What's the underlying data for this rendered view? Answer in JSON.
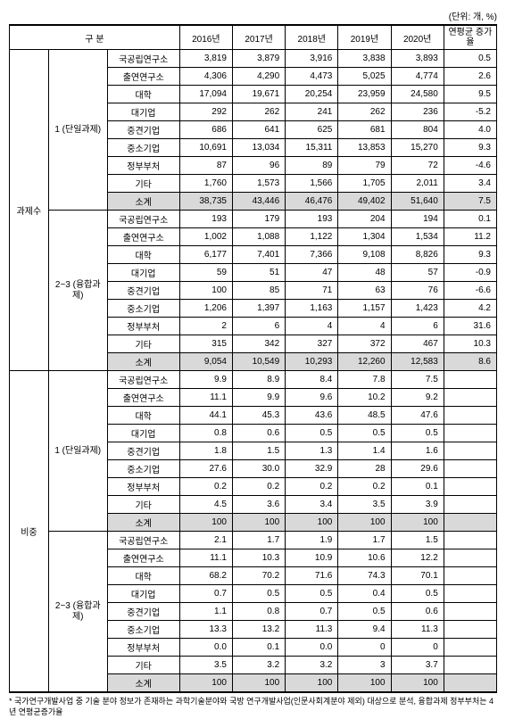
{
  "unit_label": "(단위: 개, %)",
  "header": {
    "cat": "구 분",
    "y2016": "2016년",
    "y2017": "2017년",
    "y2018": "2018년",
    "y2019": "2019년",
    "y2020": "2020년",
    "rate": "연평균\n증가율"
  },
  "group1": {
    "label": "과제수"
  },
  "group2": {
    "label": "비중"
  },
  "sub1": {
    "label": "1\n(단일과제)"
  },
  "sub2": {
    "label": "2~3\n(융합과제)"
  },
  "rowlabels": {
    "r1": "국공립연구소",
    "r2": "출연연구소",
    "r3": "대학",
    "r4": "대기업",
    "r5": "중견기업",
    "r6": "중소기업",
    "r7": "정부부처",
    "r8": "기타",
    "r9": "소계"
  },
  "sections": [
    {
      "rows": [
        [
          "3,819",
          "3,879",
          "3,916",
          "3,838",
          "3,893",
          "0.5"
        ],
        [
          "4,306",
          "4,290",
          "4,473",
          "5,025",
          "4,774",
          "2.6"
        ],
        [
          "17,094",
          "19,671",
          "20,254",
          "23,959",
          "24,580",
          "9.5"
        ],
        [
          "292",
          "262",
          "241",
          "262",
          "236",
          "-5.2"
        ],
        [
          "686",
          "641",
          "625",
          "681",
          "804",
          "4.0"
        ],
        [
          "10,691",
          "13,034",
          "15,311",
          "13,853",
          "15,270",
          "9.3"
        ],
        [
          "87",
          "96",
          "89",
          "79",
          "72",
          "-4.6"
        ],
        [
          "1,760",
          "1,573",
          "1,566",
          "1,705",
          "2,011",
          "3.4"
        ],
        [
          "38,735",
          "43,446",
          "46,476",
          "49,402",
          "51,640",
          "7.5"
        ]
      ]
    },
    {
      "rows": [
        [
          "193",
          "179",
          "193",
          "204",
          "194",
          "0.1"
        ],
        [
          "1,002",
          "1,088",
          "1,122",
          "1,304",
          "1,534",
          "11.2"
        ],
        [
          "6,177",
          "7,401",
          "7,366",
          "9,108",
          "8,826",
          "9.3"
        ],
        [
          "59",
          "51",
          "47",
          "48",
          "57",
          "-0.9"
        ],
        [
          "100",
          "85",
          "71",
          "63",
          "76",
          "-6.6"
        ],
        [
          "1,206",
          "1,397",
          "1,163",
          "1,157",
          "1,423",
          "4.2"
        ],
        [
          "2",
          "6",
          "4",
          "4",
          "6",
          "31.6"
        ],
        [
          "315",
          "342",
          "327",
          "372",
          "467",
          "10.3"
        ],
        [
          "9,054",
          "10,549",
          "10,293",
          "12,260",
          "12,583",
          "8.6"
        ]
      ]
    },
    {
      "rows": [
        [
          "9.9",
          "8.9",
          "8.4",
          "7.8",
          "7.5",
          ""
        ],
        [
          "11.1",
          "9.9",
          "9.6",
          "10.2",
          "9.2",
          ""
        ],
        [
          "44.1",
          "45.3",
          "43.6",
          "48.5",
          "47.6",
          ""
        ],
        [
          "0.8",
          "0.6",
          "0.5",
          "0.5",
          "0.5",
          ""
        ],
        [
          "1.8",
          "1.5",
          "1.3",
          "1.4",
          "1.6",
          ""
        ],
        [
          "27.6",
          "30.0",
          "32.9",
          "28",
          "29.6",
          ""
        ],
        [
          "0.2",
          "0.2",
          "0.2",
          "0.2",
          "0.1",
          ""
        ],
        [
          "4.5",
          "3.6",
          "3.4",
          "3.5",
          "3.9",
          ""
        ],
        [
          "100",
          "100",
          "100",
          "100",
          "100",
          ""
        ]
      ]
    },
    {
      "rows": [
        [
          "2.1",
          "1.7",
          "1.9",
          "1.7",
          "1.5",
          ""
        ],
        [
          "11.1",
          "10.3",
          "10.9",
          "10.6",
          "12.2",
          ""
        ],
        [
          "68.2",
          "70.2",
          "71.6",
          "74.3",
          "70.1",
          ""
        ],
        [
          "0.7",
          "0.5",
          "0.5",
          "0.4",
          "0.5",
          ""
        ],
        [
          "1.1",
          "0.8",
          "0.7",
          "0.5",
          "0.6",
          ""
        ],
        [
          "13.3",
          "13.2",
          "11.3",
          "9.4",
          "11.3",
          ""
        ],
        [
          "0.0",
          "0.1",
          "0.0",
          "0",
          "0",
          ""
        ],
        [
          "3.5",
          "3.2",
          "3.2",
          "3",
          "3.7",
          ""
        ],
        [
          "100",
          "100",
          "100",
          "100",
          "100",
          ""
        ]
      ]
    }
  ],
  "footnote": "* 국가연구개발사업 중 기술 분야 정보가 존재하는 과학기술분야와 국방 연구개발사업(인문사회계분야 제외) 대상으로 분석, 융합과제 정부부처는 4년 연평균증가율"
}
